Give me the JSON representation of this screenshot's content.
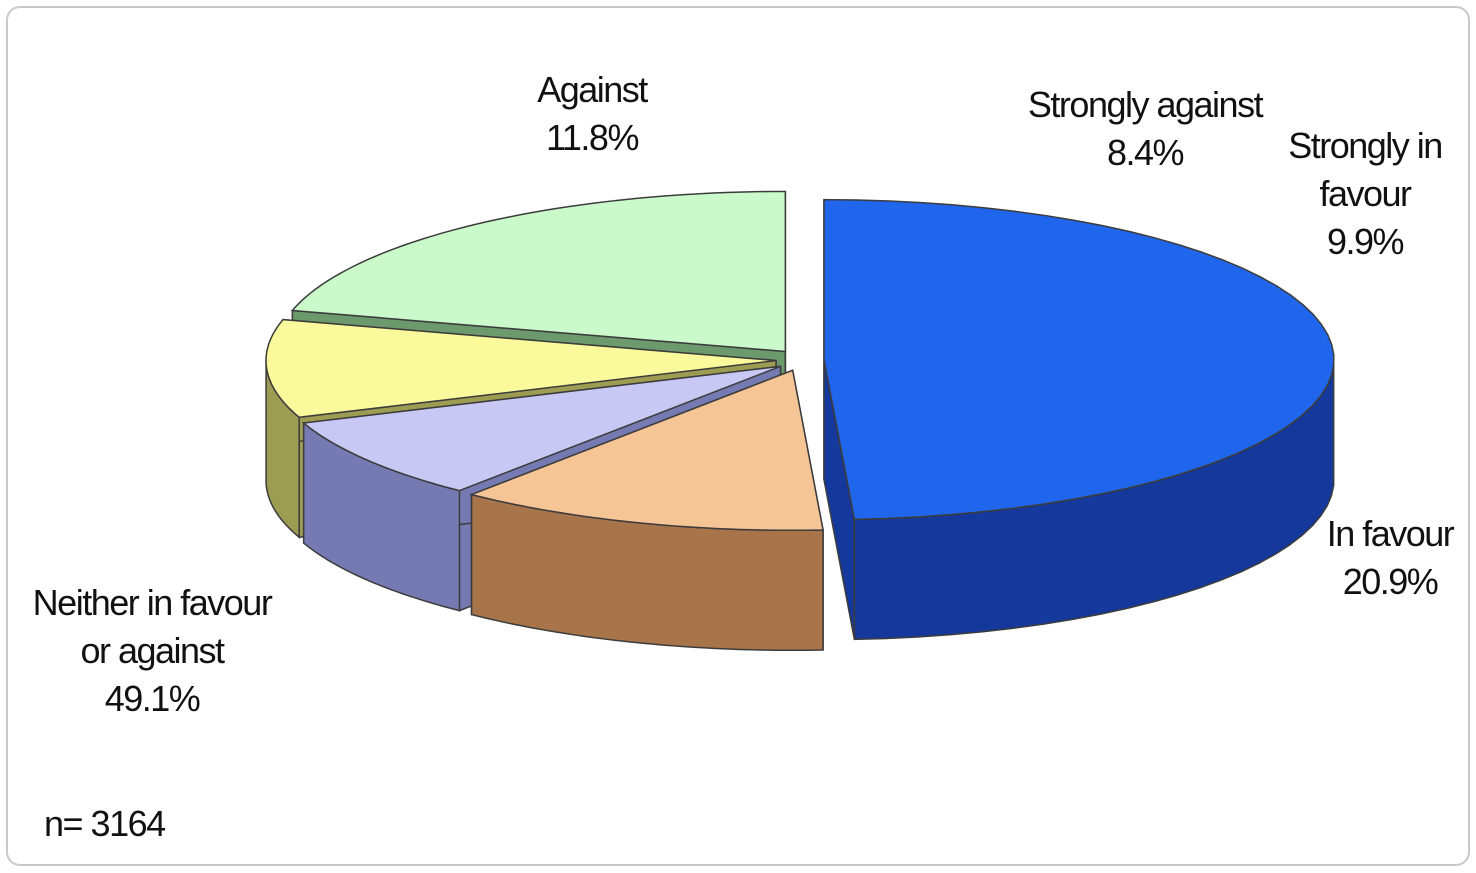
{
  "chart_data": {
    "type": "pie",
    "title": "",
    "style": "3d-exploded",
    "slices": [
      {
        "label": "Neither in favour or against",
        "label_lines": [
          "Neither in favour",
          "or against"
        ],
        "value": 49.1,
        "display": "49.1%",
        "color": "#2066ec",
        "side_color": "#14389c"
      },
      {
        "label": "Against",
        "label_lines": [
          "Against"
        ],
        "value": 11.8,
        "display": "11.8%",
        "color": "#f6c596",
        "side_color": "#a8744a"
      },
      {
        "label": "Strongly against",
        "label_lines": [
          "Strongly against"
        ],
        "value": 8.4,
        "display": "8.4%",
        "color": "#c8c8f4",
        "side_color": "#767ab2"
      },
      {
        "label": "Strongly in favour",
        "label_lines": [
          "Strongly in",
          "favour"
        ],
        "value": 9.9,
        "display": "9.9%",
        "color": "#fafa9c",
        "side_color": "#9c9c52"
      },
      {
        "label": "In favour",
        "label_lines": [
          "In favour"
        ],
        "value": 20.9,
        "display": "20.9%",
        "color": "#caf9ca",
        "side_color": "#6c9a6c"
      }
    ],
    "legend": "none",
    "note": "n= 3164"
  }
}
